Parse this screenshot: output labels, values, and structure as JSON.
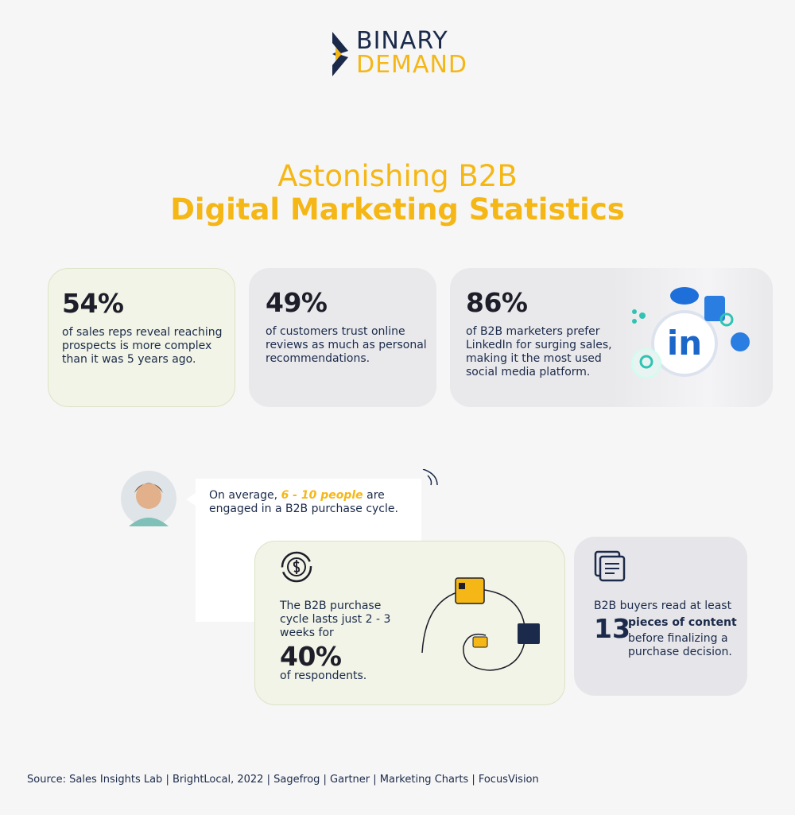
{
  "logo": {
    "line1": "BINARY",
    "line2": "DEMAND"
  },
  "title": {
    "line1": "Astonishing B2B",
    "line2": "Digital Marketing Statistics"
  },
  "cards": [
    {
      "stat": "54%",
      "text": "of sales reps reveal reaching prospects is more complex than it was 5 years ago."
    },
    {
      "stat": "49%",
      "text": "of customers trust online reviews as much as personal recommendations."
    },
    {
      "stat": "86%",
      "text": "of B2B marketers prefer LinkedIn for surging sales, making it the most used social media platform.",
      "icon_label": "in"
    }
  ],
  "quote": {
    "before": "On average,",
    "highlight": "6 - 10 people",
    "after": "are engaged in a B2B purchase cycle."
  },
  "cycle_card": {
    "text": "The B2B purchase cycle lasts just 2 - 3 weeks for",
    "stat": "40%",
    "after": "of respondents."
  },
  "content_card": {
    "text": "B2B buyers read at least",
    "stat": "13",
    "bold": "pieces of content",
    "after": "before finalizing a purchase decision."
  },
  "source": "Source: Sales Insights Lab | BrightLocal, 2022 | Sagefrog | Gartner | Marketing Charts | FocusVision"
}
